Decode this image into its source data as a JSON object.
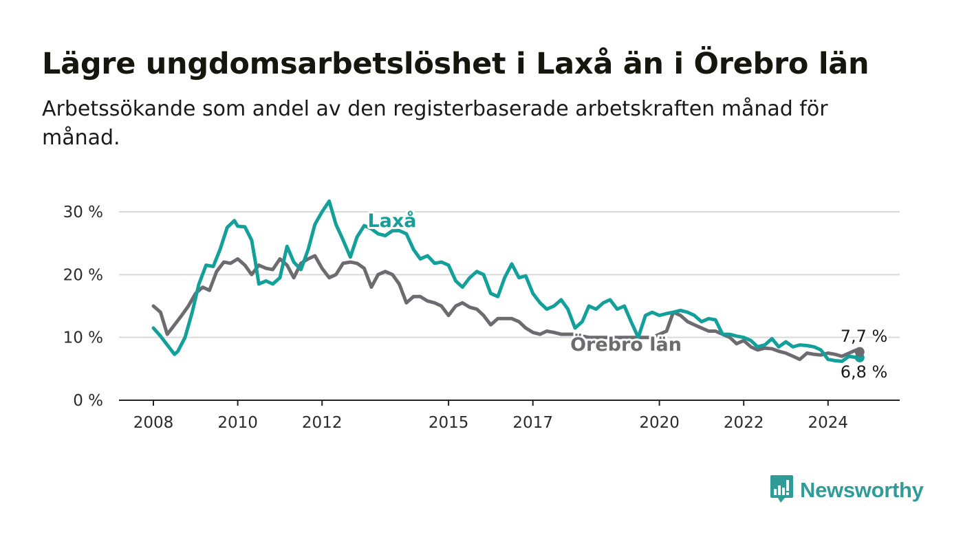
{
  "title": "Lägre ungdomsarbetslöshet i Laxå än i Örebro län",
  "subtitle": "Arbetssökande som andel av den registerbaserade arbetskraften månad för månad.",
  "brand": {
    "name": "Newsworthy",
    "icon": "newsworthy-logo-icon",
    "color": "#2f9c98"
  },
  "colors": {
    "laxa": "#13a09a",
    "orebro": "#6d6b6f",
    "grid": "#d9d9d9",
    "axis": "#222222"
  },
  "chart_data": {
    "type": "line",
    "title": "Lägre ungdomsarbetslöshet i Laxå än i Örebro län",
    "xlabel": "",
    "ylabel": "",
    "xlim": [
      2008,
      2025
    ],
    "ylim": [
      0,
      30
    ],
    "y_ticks": [
      0,
      10,
      20,
      30
    ],
    "y_tick_labels": [
      "0 %",
      "10 %",
      "20 %",
      "30 %"
    ],
    "x_ticks": [
      2008,
      2010,
      2012,
      2015,
      2017,
      2020,
      2022,
      2024
    ],
    "x_tick_labels": [
      "2008",
      "2010",
      "2012",
      "2015",
      "2017",
      "2020",
      "2022",
      "2024"
    ],
    "grid": true,
    "legend": "inline labels",
    "end_labels": [
      "7,7 %",
      "6,8 %"
    ],
    "series": [
      {
        "name": "Laxå",
        "color": "#13a09a",
        "x": [
          2008.0,
          2008.17,
          2008.33,
          2008.5,
          2008.58,
          2008.75,
          2008.92,
          2009.08,
          2009.25,
          2009.42,
          2009.58,
          2009.75,
          2009.92,
          2010.0,
          2010.17,
          2010.33,
          2010.42,
          2010.5,
          2010.67,
          2010.83,
          2011.0,
          2011.17,
          2011.33,
          2011.5,
          2011.67,
          2011.83,
          2012.0,
          2012.17,
          2012.33,
          2012.5,
          2012.67,
          2012.83,
          2013.0,
          2013.17,
          2013.33,
          2013.5,
          2013.67,
          2013.83,
          2014.0,
          2014.17,
          2014.33,
          2014.5,
          2014.67,
          2014.83,
          2015.0,
          2015.17,
          2015.33,
          2015.5,
          2015.67,
          2015.83,
          2016.0,
          2016.17,
          2016.33,
          2016.5,
          2016.67,
          2016.83,
          2017.0,
          2017.17,
          2017.33,
          2017.5,
          2017.67,
          2017.83,
          2018.0,
          2018.17,
          2018.33,
          2018.5,
          2018.67,
          2018.83,
          2019.0,
          2019.17,
          2019.33,
          2019.5,
          2019.67,
          2019.83,
          2020.0,
          2020.17,
          2020.33,
          2020.5,
          2020.67,
          2020.83,
          2021.0,
          2021.17,
          2021.33,
          2021.5,
          2021.67,
          2021.83,
          2022.0,
          2022.17,
          2022.33,
          2022.5,
          2022.67,
          2022.83,
          2023.0,
          2023.17,
          2023.33,
          2023.5,
          2023.67,
          2023.83,
          2024.0,
          2024.17,
          2024.33,
          2024.5,
          2024.67,
          2024.75
        ],
        "y": [
          11.5,
          10.2,
          8.8,
          7.3,
          7.8,
          10.0,
          14.0,
          18.5,
          21.5,
          21.3,
          24.0,
          27.5,
          28.6,
          27.7,
          27.6,
          25.5,
          22.0,
          18.5,
          19.0,
          18.5,
          19.5,
          24.5,
          22.0,
          20.8,
          24.0,
          28.0,
          30.0,
          31.7,
          28.0,
          25.5,
          22.8,
          26.0,
          27.8,
          27.3,
          26.5,
          26.2,
          27.0,
          27.0,
          26.5,
          24.0,
          22.5,
          23.0,
          21.8,
          22.0,
          21.5,
          19.0,
          18.0,
          19.5,
          20.5,
          20.0,
          17.0,
          16.5,
          19.5,
          21.7,
          19.5,
          19.8,
          17.0,
          15.5,
          14.5,
          15.0,
          16.0,
          14.5,
          11.5,
          12.5,
          15.0,
          14.5,
          15.5,
          16.0,
          14.5,
          15.0,
          12.5,
          10.0,
          13.5,
          14.0,
          13.5,
          13.8,
          14.0,
          14.3,
          14.0,
          13.5,
          12.5,
          13.0,
          12.8,
          10.5,
          10.5,
          10.2,
          10.0,
          9.5,
          8.5,
          8.8,
          9.8,
          8.5,
          9.3,
          8.5,
          8.8,
          8.7,
          8.5,
          8.0,
          6.5,
          6.3,
          6.2,
          7.0,
          6.8,
          6.8
        ]
      },
      {
        "name": "Örebro län",
        "color": "#6d6b6f",
        "x": [
          2008.0,
          2008.17,
          2008.33,
          2008.5,
          2008.67,
          2008.83,
          2009.0,
          2009.17,
          2009.33,
          2009.5,
          2009.67,
          2009.83,
          2010.0,
          2010.17,
          2010.33,
          2010.5,
          2010.67,
          2010.83,
          2011.0,
          2011.17,
          2011.33,
          2011.5,
          2011.67,
          2011.83,
          2012.0,
          2012.17,
          2012.33,
          2012.5,
          2012.67,
          2012.83,
          2013.0,
          2013.17,
          2013.33,
          2013.5,
          2013.67,
          2013.83,
          2014.0,
          2014.17,
          2014.33,
          2014.5,
          2014.67,
          2014.83,
          2015.0,
          2015.17,
          2015.33,
          2015.5,
          2015.67,
          2015.83,
          2016.0,
          2016.17,
          2016.33,
          2016.5,
          2016.67,
          2016.83,
          2017.0,
          2017.17,
          2017.33,
          2017.5,
          2017.67,
          2017.83,
          2018.0,
          2018.17,
          2018.33,
          2018.5,
          2018.67,
          2018.83,
          2019.0,
          2019.17,
          2019.33,
          2019.5,
          2019.67,
          2019.83,
          2020.0,
          2020.17,
          2020.33,
          2020.5,
          2020.67,
          2020.83,
          2021.0,
          2021.17,
          2021.33,
          2021.5,
          2021.67,
          2021.83,
          2022.0,
          2022.17,
          2022.33,
          2022.5,
          2022.67,
          2022.83,
          2023.0,
          2023.17,
          2023.33,
          2023.5,
          2023.67,
          2023.83,
          2024.0,
          2024.17,
          2024.33,
          2024.5,
          2024.67,
          2024.75
        ],
        "y": [
          15.0,
          14.0,
          10.5,
          12.0,
          13.5,
          15.0,
          17.0,
          18.0,
          17.5,
          20.5,
          22.0,
          21.8,
          22.5,
          21.5,
          20.0,
          21.5,
          21.0,
          20.8,
          22.5,
          21.5,
          19.5,
          21.8,
          22.5,
          23.0,
          21.0,
          19.5,
          20.0,
          21.8,
          22.0,
          21.8,
          21.0,
          18.0,
          20.0,
          20.5,
          20.0,
          18.5,
          15.5,
          16.5,
          16.5,
          15.8,
          15.5,
          15.0,
          13.5,
          15.0,
          15.5,
          14.8,
          14.5,
          13.5,
          12.0,
          13.0,
          13.0,
          13.0,
          12.5,
          11.5,
          10.8,
          10.5,
          11.0,
          10.8,
          10.5,
          10.5,
          10.5,
          10.2,
          10.0,
          10.0,
          10.0,
          10.0,
          10.0,
          10.0,
          10.0,
          10.0,
          10.0,
          10.0,
          10.5,
          11.0,
          14.0,
          13.5,
          12.5,
          12.0,
          11.5,
          11.0,
          11.0,
          10.5,
          10.0,
          9.0,
          9.5,
          8.5,
          8.0,
          8.3,
          8.2,
          7.8,
          7.5,
          7.0,
          6.5,
          7.5,
          7.3,
          7.2,
          7.5,
          7.3,
          7.0,
          7.5,
          8.0,
          7.7
        ]
      }
    ]
  }
}
